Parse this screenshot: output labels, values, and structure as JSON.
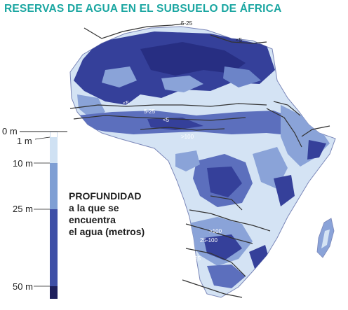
{
  "title": "RESERVAS DE AGUA EN EL SUBSUELO DE ÁFRICA",
  "legend": {
    "lines": [
      "PROFUNDIDAD",
      "a la que se",
      "encuentra",
      "el agua (metros)"
    ],
    "ticks": [
      {
        "label": "0 m"
      },
      {
        "label": "1 m"
      },
      {
        "label": "10 m"
      },
      {
        "label": "25 m"
      },
      {
        "label": "50 m"
      }
    ],
    "colors": {
      "band_0_1": "#ffffff",
      "band_1_10": "#cfe1f3",
      "band_10_25": "#7f9fd4",
      "band_25_50": "#3e4fa6",
      "band_50_plus": "#1d1f5c"
    }
  },
  "map_labels": {
    "north_1": "5-25",
    "north_2": "<5",
    "sahel_1": "<5",
    "sahel_2": "5-25",
    "sahel_3": "<5",
    "central": ">100",
    "south_1": ">100",
    "south_2": "25-100",
    "south_3": "5-25"
  },
  "map_colors": {
    "land_light": "#d4e3f4",
    "land_mid": "#8aa3d8",
    "land_dark": "#35409a",
    "contour": "#333333"
  }
}
